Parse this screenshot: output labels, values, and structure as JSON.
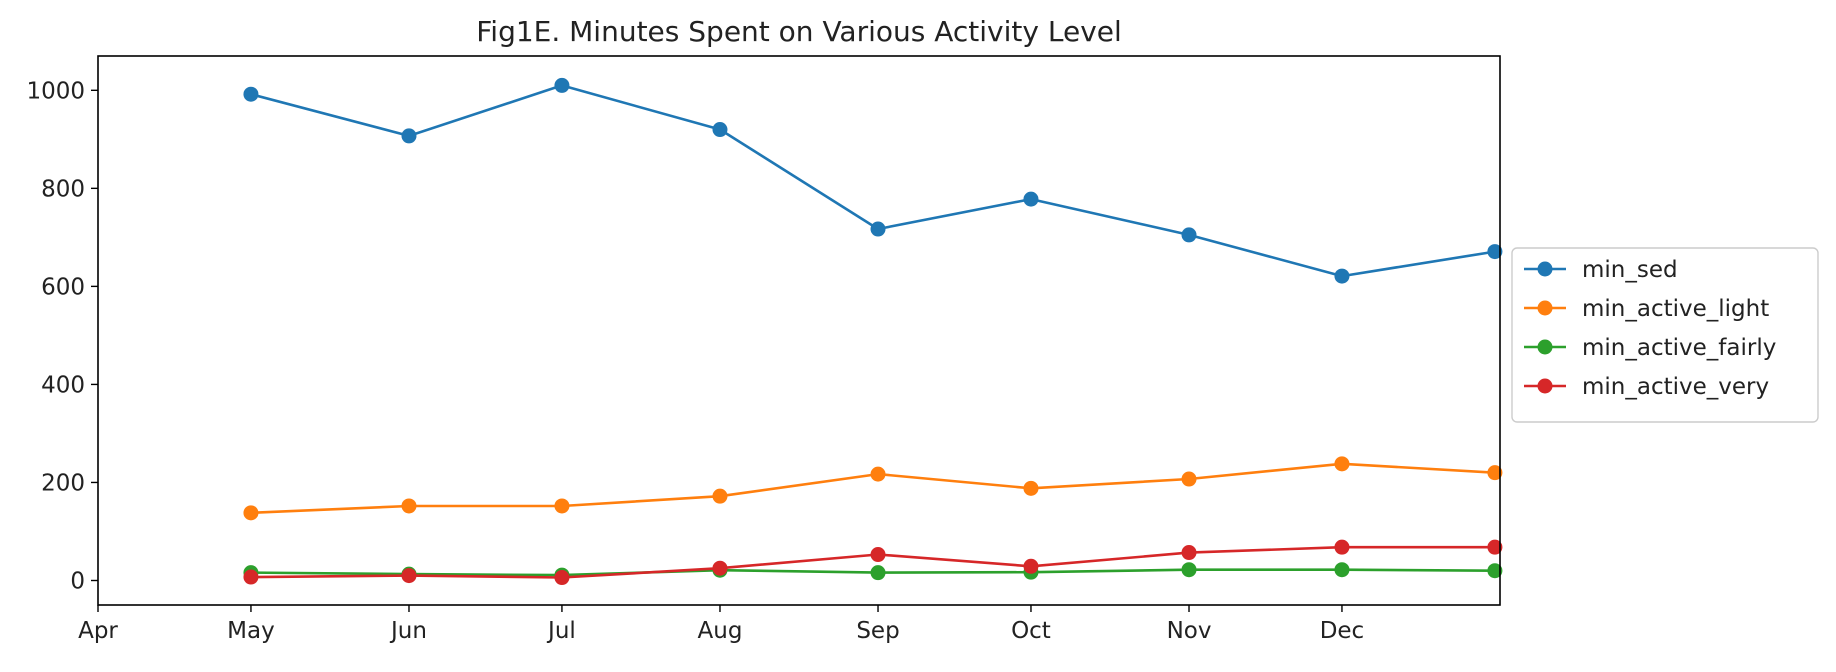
{
  "chart_data": {
    "type": "line",
    "title": "Fig1E. Minutes Spent on Various Activity Level",
    "xlabel": "",
    "ylabel": "",
    "x_tick_labels": [
      "Apr",
      "May",
      "Jun",
      "Jul",
      "Aug",
      "Sep",
      "Oct",
      "Nov",
      "Dec"
    ],
    "x_tick_dates": [
      "2016-04-01",
      "2016-05-01",
      "2016-06-01",
      "2016-07-01",
      "2016-08-01",
      "2016-09-01",
      "2016-10-01",
      "2016-11-01",
      "2016-12-01"
    ],
    "x": [
      "2016-05-01",
      "2016-06-01",
      "2016-07-01",
      "2016-08-01",
      "2016-09-01",
      "2016-10-01",
      "2016-11-01",
      "2016-12-01",
      "2016-12-31"
    ],
    "xlim": [
      "2016-04-01",
      "2017-01-01"
    ],
    "y_ticks": [
      0,
      200,
      400,
      600,
      800,
      1000
    ],
    "ylim": [
      -50,
      1070
    ],
    "grid": false,
    "legend_position": "center-right outside",
    "series": [
      {
        "name": "min_sed",
        "color": "#1f77b4",
        "marker": "circle",
        "values": [
          992,
          907,
          1010,
          920,
          717,
          778,
          705,
          621,
          671
        ]
      },
      {
        "name": "min_active_light",
        "color": "#ff7f0e",
        "marker": "circle",
        "values": [
          138,
          152,
          152,
          172,
          217,
          188,
          207,
          238,
          220
        ]
      },
      {
        "name": "min_active_fairly",
        "color": "#2ca02c",
        "marker": "circle",
        "values": [
          16,
          13,
          11,
          21,
          16,
          17,
          22,
          22,
          20
        ]
      },
      {
        "name": "min_active_very",
        "color": "#d62728",
        "marker": "circle",
        "values": [
          7,
          10,
          6,
          25,
          53,
          29,
          57,
          68,
          68
        ]
      }
    ]
  }
}
